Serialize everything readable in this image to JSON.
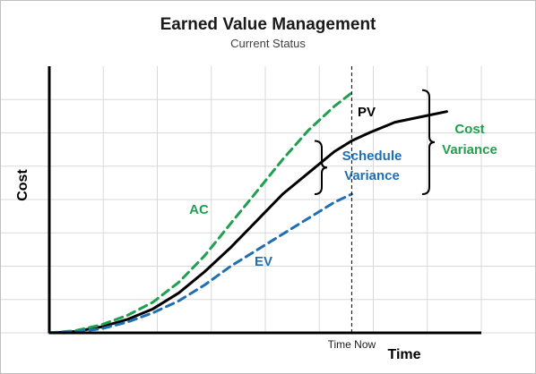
{
  "chart_data": {
    "type": "line",
    "title": "Earned Value Management",
    "subtitle": "Current Status",
    "xlabel": "Time",
    "ylabel": "Cost",
    "xlim": [
      0,
      10
    ],
    "ylim": [
      0,
      10
    ],
    "grid": true,
    "show_tick_values": false,
    "time_now": {
      "x": 7.0,
      "label": "Time Now"
    },
    "series": [
      {
        "name": "PV",
        "color": "#000000",
        "style": "solid",
        "x": [
          0,
          0.6,
          1.2,
          1.8,
          2.4,
          3.0,
          3.6,
          4.2,
          4.8,
          5.4,
          6.0,
          6.6,
          7.0,
          7.4,
          8.0,
          8.6,
          9.2
        ],
        "y": [
          0,
          0.05,
          0.22,
          0.5,
          0.9,
          1.5,
          2.3,
          3.2,
          4.2,
          5.2,
          6.0,
          6.8,
          7.2,
          7.5,
          7.9,
          8.1,
          8.3
        ]
      },
      {
        "name": "AC",
        "color": "#1fa050",
        "style": "dashed",
        "x": [
          0,
          0.6,
          1.2,
          1.8,
          2.4,
          3.0,
          3.6,
          4.2,
          4.8,
          5.4,
          6.0,
          6.6,
          7.0
        ],
        "y": [
          0,
          0.08,
          0.3,
          0.65,
          1.15,
          1.9,
          2.9,
          4.1,
          5.3,
          6.5,
          7.6,
          8.5,
          9.0
        ]
      },
      {
        "name": "EV",
        "color": "#1f6fb5",
        "style": "dashed",
        "x": [
          0,
          0.6,
          1.2,
          1.8,
          2.4,
          3.0,
          3.6,
          4.2,
          4.8,
          5.4,
          6.0,
          6.6,
          7.0
        ],
        "y": [
          0,
          0.04,
          0.15,
          0.4,
          0.75,
          1.2,
          1.8,
          2.5,
          3.1,
          3.7,
          4.3,
          4.9,
          5.2
        ]
      }
    ],
    "annotations": [
      {
        "label": "Schedule Variance",
        "lines": [
          "Schedule",
          "Variance"
        ],
        "color": "#1f6fb5",
        "from_series": "PV",
        "to_series": "EV"
      },
      {
        "label": "Cost Variance",
        "lines": [
          "Cost",
          "Variance"
        ],
        "color": "#1fa050",
        "from_series": "AC",
        "to_series": "EV"
      }
    ]
  }
}
